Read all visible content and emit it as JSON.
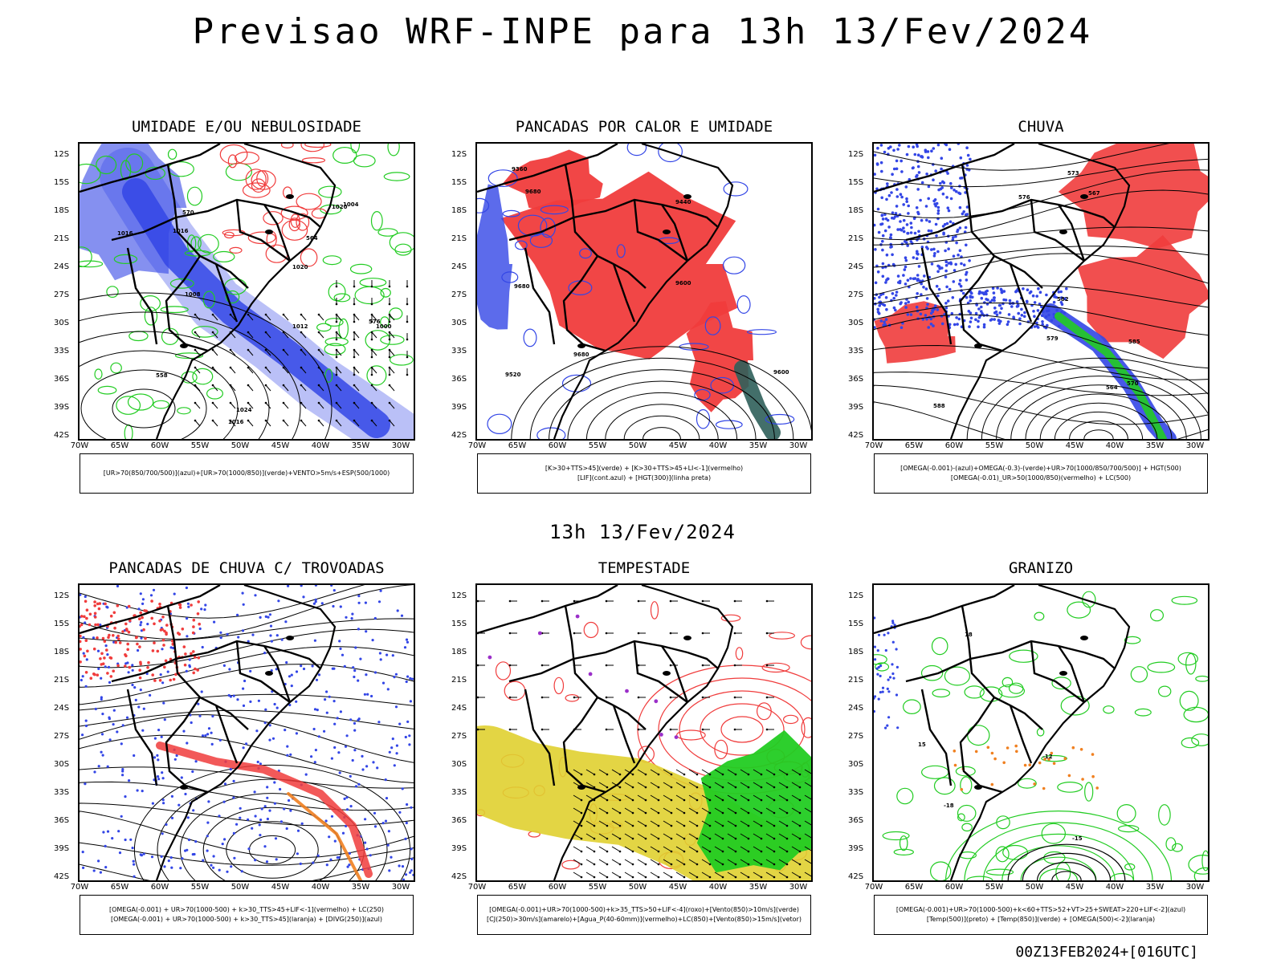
{
  "title": "Previsao WRF-INPE  para 13h 13/Fev/2024",
  "subtitle": "13h 13/Fev/2024",
  "footer": "00Z13FEB2024+[016UTC]",
  "lat_labels": [
    "12S",
    "15S",
    "18S",
    "21S",
    "24S",
    "27S",
    "30S",
    "33S",
    "36S",
    "39S",
    "42S"
  ],
  "lon_labels": [
    "70W",
    "65W",
    "60W",
    "55W",
    "50W",
    "45W",
    "40W",
    "35W",
    "30W"
  ],
  "colors": {
    "blue": "#3346e6",
    "light_blue": "#a9b0f5",
    "green": "#22cc22",
    "red": "#f03c3c",
    "dark_green": "#2f5f5a",
    "yellow": "#e0d030",
    "orange": "#f08020",
    "purple": "#9b2fc9"
  },
  "panels": [
    {
      "title": "UMIDADE E/OU NEBULOSIDADE",
      "legend": [
        "[UR>70(850/700/500)](azul)+[UR>70(1000/850)](verde)+VENTO>5m/s+ESP(500/1000)"
      ],
      "contour_labels": [
        "1016",
        "1016",
        "1020",
        "1024",
        "1020",
        "1016",
        "1012",
        "1008",
        "1004",
        "1000",
        "576",
        "570",
        "564",
        "558"
      ]
    },
    {
      "title": "PANCADAS POR CALOR E UMIDADE",
      "legend": [
        "[K>30+TTS>45](verde)  +  [K>30+TTS>45+LI<-1](vermelho)",
        "[LIF](cont.azul)  +  [HGT(300)](linha preta)"
      ],
      "contour_labels": [
        "9680",
        "9680",
        "9600",
        "9520",
        "9440",
        "9360",
        "9680",
        "9600"
      ]
    },
    {
      "title": "CHUVA",
      "legend": [
        "[OMEGA(-0.001)-(azul)+OMEGA(-0.3)-(verde)+UR>70(1000/850/700/500)]  +  HGT(500)",
        "[OMEGA(-0.01)_UR>50(1000/850)(vermelho)  +  LC(500)"
      ],
      "contour_labels": [
        "588",
        "585",
        "582",
        "579",
        "576",
        "573",
        "570",
        "567",
        "564"
      ]
    },
    {
      "title": "PANCADAS DE CHUVA C/ TROVOADAS",
      "legend": [
        "[OMEGA(-0.001)  +  UR>70(1000-500)  +  k>30_TTS>45+LIF<-1](vermelho)  +  LC(250)",
        "[OMEGA(-0.001)  +  UR>70(1000-500)  +  k>30_TTS>45](laranja)  +  [DIVG(250)](azul)"
      ],
      "contour_labels": []
    },
    {
      "title": "TEMPESTADE",
      "legend": [
        "[OMEGA(-0.001)+UR>70(1000-500)+k>35_TTS>50+LIF<-4](roxo)+[Vento(850)>10m/s](verde)",
        "[CJ(250)>30m/s](amarelo)+[Agua_P(40-60mm)](vermelho)+LC(850)+[Vento(850)>15m/s](vetor)"
      ],
      "contour_labels": []
    },
    {
      "title": "GRANIZO",
      "legend": [
        "[OMEGA(-0.001)+UR>70(1000-500)+k<60+TTS>52+VT>25+SWEAT>220+LIF<-2](azul)",
        "[Temp(500)](preto)  +  [Temp(850)](verde)  +  [OMEGA(500)<-2](laranja)"
      ],
      "contour_labels": [
        "-18",
        "-15",
        "-12",
        "15",
        "18"
      ]
    }
  ]
}
